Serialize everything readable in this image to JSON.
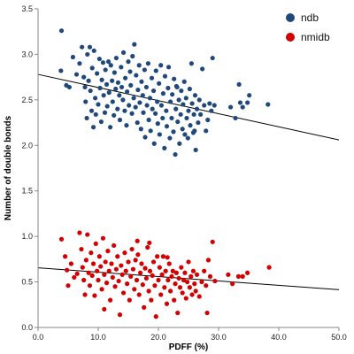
{
  "chart_data": {
    "type": "scatter",
    "title": "",
    "xlabel": "PDFF (%)",
    "ylabel": "Number of double bonds",
    "xlim": [
      0,
      50
    ],
    "ylim": [
      0,
      3.5
    ],
    "x_ticks": [
      "0.0",
      "10.0",
      "20.0",
      "30.0",
      "40.0",
      "50.0"
    ],
    "y_ticks": [
      "0.0",
      "0.5",
      "1.0",
      "1.5",
      "2.0",
      "2.5",
      "3.0",
      "3.5"
    ],
    "grid": false,
    "legend_position": "top-right",
    "series": [
      {
        "name": "ndb",
        "color": "#1f497d",
        "trendline": {
          "intercept": 2.78,
          "slope": -0.0144
        },
        "points": [
          [
            3.9,
            3.26
          ],
          [
            3.8,
            2.82
          ],
          [
            4.7,
            2.66
          ],
          [
            5.2,
            2.64
          ],
          [
            5.8,
            2.97
          ],
          [
            6.4,
            2.78
          ],
          [
            6.9,
            2.9
          ],
          [
            7.3,
            3.08
          ],
          [
            7.6,
            2.75
          ],
          [
            7.8,
            2.64
          ],
          [
            7.9,
            2.48
          ],
          [
            8.1,
            2.3
          ],
          [
            8.2,
            3.0
          ],
          [
            8.4,
            2.71
          ],
          [
            8.6,
            3.08
          ],
          [
            8.7,
            2.6
          ],
          [
            8.9,
            2.38
          ],
          [
            9.0,
            2.85
          ],
          [
            9.2,
            2.2
          ],
          [
            9.3,
            3.04
          ],
          [
            9.5,
            2.52
          ],
          [
            9.6,
            2.34
          ],
          [
            9.8,
            2.79
          ],
          [
            10.0,
            2.45
          ],
          [
            10.2,
            2.95
          ],
          [
            10.3,
            2.63
          ],
          [
            10.5,
            2.26
          ],
          [
            10.6,
            2.72
          ],
          [
            10.8,
            2.91
          ],
          [
            10.9,
            2.55
          ],
          [
            11.1,
            2.36
          ],
          [
            11.2,
            2.83
          ],
          [
            11.4,
            2.67
          ],
          [
            11.5,
            2.43
          ],
          [
            11.7,
            2.92
          ],
          [
            11.8,
            2.58
          ],
          [
            12.0,
            2.2
          ],
          [
            12.1,
            2.88
          ],
          [
            12.3,
            2.71
          ],
          [
            12.4,
            2.48
          ],
          [
            12.6,
            2.33
          ],
          [
            12.7,
            2.8
          ],
          [
            12.9,
            2.62
          ],
          [
            13.0,
            2.96
          ],
          [
            13.2,
            2.4
          ],
          [
            13.3,
            2.69
          ],
          [
            13.5,
            2.55
          ],
          [
            13.6,
            2.28
          ],
          [
            13.8,
            2.86
          ],
          [
            13.9,
            2.64
          ],
          [
            14.1,
            2.5
          ],
          [
            14.2,
            3.02
          ],
          [
            14.4,
            2.38
          ],
          [
            14.5,
            2.74
          ],
          [
            14.7,
            2.22
          ],
          [
            14.8,
            2.59
          ],
          [
            15.0,
            2.92
          ],
          [
            15.1,
            2.44
          ],
          [
            15.3,
            2.81
          ],
          [
            15.4,
            2.66
          ],
          [
            15.6,
            2.35
          ],
          [
            15.7,
            2.98
          ],
          [
            15.9,
            2.52
          ],
          [
            16.0,
            3.11
          ],
          [
            16.2,
            2.42
          ],
          [
            16.3,
            2.77
          ],
          [
            16.5,
            2.25
          ],
          [
            16.6,
            2.61
          ],
          [
            16.8,
            2.88
          ],
          [
            16.9,
            2.47
          ],
          [
            17.1,
            2.18
          ],
          [
            17.2,
            2.7
          ],
          [
            17.4,
            2.55
          ],
          [
            17.5,
            2.36
          ],
          [
            17.7,
            2.83
          ],
          [
            17.8,
            2.09
          ],
          [
            18.0,
            2.64
          ],
          [
            18.1,
            2.44
          ],
          [
            18.3,
            2.9
          ],
          [
            18.4,
            2.28
          ],
          [
            18.6,
            2.52
          ],
          [
            18.7,
            2.16
          ],
          [
            18.9,
            2.74
          ],
          [
            19.0,
            2.4
          ],
          [
            19.2,
            2.6
          ],
          [
            19.3,
            2.02
          ],
          [
            19.5,
            2.35
          ],
          [
            19.6,
            2.82
          ],
          [
            19.8,
            2.48
          ],
          [
            19.9,
            2.24
          ],
          [
            20.1,
            2.68
          ],
          [
            20.2,
            2.12
          ],
          [
            20.4,
            2.88
          ],
          [
            20.5,
            2.44
          ],
          [
            20.7,
            2.3
          ],
          [
            20.8,
            2.57
          ],
          [
            21.0,
            1.97
          ],
          [
            21.1,
            2.76
          ],
          [
            21.3,
            2.38
          ],
          [
            21.4,
            2.21
          ],
          [
            21.6,
            2.63
          ],
          [
            21.7,
            2.86
          ],
          [
            21.9,
            2.08
          ],
          [
            22.0,
            2.48
          ],
          [
            22.2,
            2.3
          ],
          [
            22.3,
            2.56
          ],
          [
            22.5,
            2.15
          ],
          [
            22.6,
            2.73
          ],
          [
            22.8,
            1.9
          ],
          [
            22.9,
            2.4
          ],
          [
            23.1,
            2.64
          ],
          [
            23.2,
            2.26
          ],
          [
            23.4,
            2.5
          ],
          [
            23.5,
            2.02
          ],
          [
            23.7,
            2.34
          ],
          [
            23.8,
            2.6
          ],
          [
            24.0,
            2.18
          ],
          [
            24.1,
            2.45
          ],
          [
            24.3,
            2.7
          ],
          [
            24.4,
            2.12
          ],
          [
            24.6,
            2.52
          ],
          [
            24.7,
            2.3
          ],
          [
            24.9,
            2.08
          ],
          [
            25.0,
            2.38
          ],
          [
            25.2,
            2.62
          ],
          [
            25.3,
            2.22
          ],
          [
            25.5,
            2.9
          ],
          [
            25.6,
            2.46
          ],
          [
            25.8,
            2.14
          ],
          [
            25.9,
            2.34
          ],
          [
            26.1,
            2.55
          ],
          [
            26.2,
            1.95
          ],
          [
            26.4,
            2.4
          ],
          [
            26.6,
            2.25
          ],
          [
            26.8,
            2.5
          ],
          [
            27.0,
            2.34
          ],
          [
            27.3,
            2.84
          ],
          [
            27.6,
            2.44
          ],
          [
            27.9,
            2.16
          ],
          [
            28.2,
            2.28
          ],
          [
            28.5,
            2.46
          ],
          [
            28.8,
            2.38
          ],
          [
            29.0,
            2.96
          ],
          [
            29.3,
            2.44
          ],
          [
            32.0,
            2.42
          ],
          [
            32.8,
            2.3
          ],
          [
            33.4,
            2.67
          ],
          [
            33.6,
            2.47
          ],
          [
            34.0,
            2.42
          ],
          [
            34.8,
            2.47
          ],
          [
            35.1,
            2.55
          ],
          [
            38.2,
            2.45
          ],
          [
            23.0,
            2.65
          ],
          [
            26.0,
            2.16
          ]
        ]
      },
      {
        "name": "nmidb",
        "color": "#d40000",
        "trendline": {
          "intercept": 0.655,
          "slope": -0.0048
        },
        "points": [
          [
            3.9,
            0.97
          ],
          [
            4.5,
            0.78
          ],
          [
            4.8,
            0.63
          ],
          [
            5.0,
            0.46
          ],
          [
            5.5,
            0.7
          ],
          [
            6.0,
            0.55
          ],
          [
            6.5,
            0.59
          ],
          [
            6.9,
            1.04
          ],
          [
            7.2,
            0.86
          ],
          [
            7.4,
            0.66
          ],
          [
            7.6,
            0.52
          ],
          [
            7.8,
            0.36
          ],
          [
            8.0,
            0.74
          ],
          [
            8.2,
            1.02
          ],
          [
            8.4,
            0.6
          ],
          [
            8.6,
            0.46
          ],
          [
            8.8,
            0.82
          ],
          [
            9.0,
            0.57
          ],
          [
            9.2,
            0.7
          ],
          [
            9.4,
            0.35
          ],
          [
            9.6,
            0.92
          ],
          [
            9.8,
            0.62
          ],
          [
            10.0,
            0.52
          ],
          [
            10.2,
            0.78
          ],
          [
            10.4,
            0.67
          ],
          [
            10.6,
            0.42
          ],
          [
            10.8,
            0.98
          ],
          [
            11.0,
            0.58
          ],
          [
            11.2,
            0.72
          ],
          [
            11.4,
            0.49
          ],
          [
            11.6,
            0.84
          ],
          [
            11.8,
            0.62
          ],
          [
            12.0,
            0.3
          ],
          [
            12.2,
            0.7
          ],
          [
            12.4,
            0.55
          ],
          [
            12.6,
            0.9
          ],
          [
            12.8,
            0.45
          ],
          [
            13.0,
            0.64
          ],
          [
            13.2,
            0.78
          ],
          [
            13.4,
            0.51
          ],
          [
            13.6,
            0.14
          ],
          [
            13.8,
            0.68
          ],
          [
            14.0,
            0.58
          ],
          [
            14.2,
            0.38
          ],
          [
            14.4,
            0.82
          ],
          [
            14.6,
            0.62
          ],
          [
            14.8,
            0.48
          ],
          [
            15.0,
            0.72
          ],
          [
            15.2,
            0.3
          ],
          [
            15.4,
            0.56
          ],
          [
            15.6,
            0.86
          ],
          [
            15.8,
            0.64
          ],
          [
            16.0,
            0.42
          ],
          [
            16.2,
            0.74
          ],
          [
            16.4,
            0.52
          ],
          [
            16.6,
            0.8
          ],
          [
            16.8,
            0.36
          ],
          [
            17.0,
            0.6
          ],
          [
            17.2,
            0.7
          ],
          [
            17.4,
            0.47
          ],
          [
            17.6,
            0.22
          ],
          [
            17.8,
            0.65
          ],
          [
            18.0,
            0.54
          ],
          [
            18.2,
            0.88
          ],
          [
            18.4,
            0.4
          ],
          [
            18.6,
            0.62
          ],
          [
            18.8,
            0.3
          ],
          [
            19.0,
            0.57
          ],
          [
            19.2,
            0.72
          ],
          [
            19.4,
            0.46
          ],
          [
            19.6,
            0.12
          ],
          [
            19.8,
            0.78
          ],
          [
            20.0,
            0.52
          ],
          [
            20.2,
            0.66
          ],
          [
            20.4,
            0.36
          ],
          [
            20.6,
            0.58
          ],
          [
            20.8,
            0.78
          ],
          [
            21.0,
            0.44
          ],
          [
            21.2,
            0.62
          ],
          [
            21.4,
            0.26
          ],
          [
            21.6,
            0.52
          ],
          [
            21.8,
            0.7
          ],
          [
            22.0,
            0.4
          ],
          [
            22.2,
            0.56
          ],
          [
            22.4,
            0.62
          ],
          [
            22.6,
            0.3
          ],
          [
            22.8,
            0.48
          ],
          [
            23.0,
            0.6
          ],
          [
            23.2,
            0.16
          ],
          [
            23.4,
            0.54
          ],
          [
            23.6,
            0.44
          ],
          [
            23.8,
            0.66
          ],
          [
            24.0,
            0.38
          ],
          [
            24.2,
            0.52
          ],
          [
            24.4,
            0.6
          ],
          [
            24.6,
            0.32
          ],
          [
            24.8,
            0.5
          ],
          [
            25.0,
            0.72
          ],
          [
            25.2,
            0.44
          ],
          [
            25.4,
            0.56
          ],
          [
            25.6,
            0.36
          ],
          [
            25.8,
            0.62
          ],
          [
            26.0,
            0.48
          ],
          [
            26.2,
            0.4
          ],
          [
            26.4,
            0.58
          ],
          [
            26.8,
            0.34
          ],
          [
            27.2,
            0.5
          ],
          [
            27.6,
            0.62
          ],
          [
            27.9,
            0.46
          ],
          [
            28.1,
            0.16
          ],
          [
            28.3,
            0.74
          ],
          [
            28.6,
            0.56
          ],
          [
            29.0,
            0.94
          ],
          [
            29.4,
            0.51
          ],
          [
            31.6,
            0.58
          ],
          [
            32.3,
            0.48
          ],
          [
            33.3,
            0.56
          ],
          [
            34.0,
            0.56
          ],
          [
            34.8,
            0.6
          ],
          [
            38.4,
            0.66
          ],
          [
            16.5,
            0.95
          ],
          [
            18.5,
            0.93
          ],
          [
            21.5,
            0.77
          ],
          [
            11.0,
            0.2
          ]
        ]
      }
    ]
  }
}
